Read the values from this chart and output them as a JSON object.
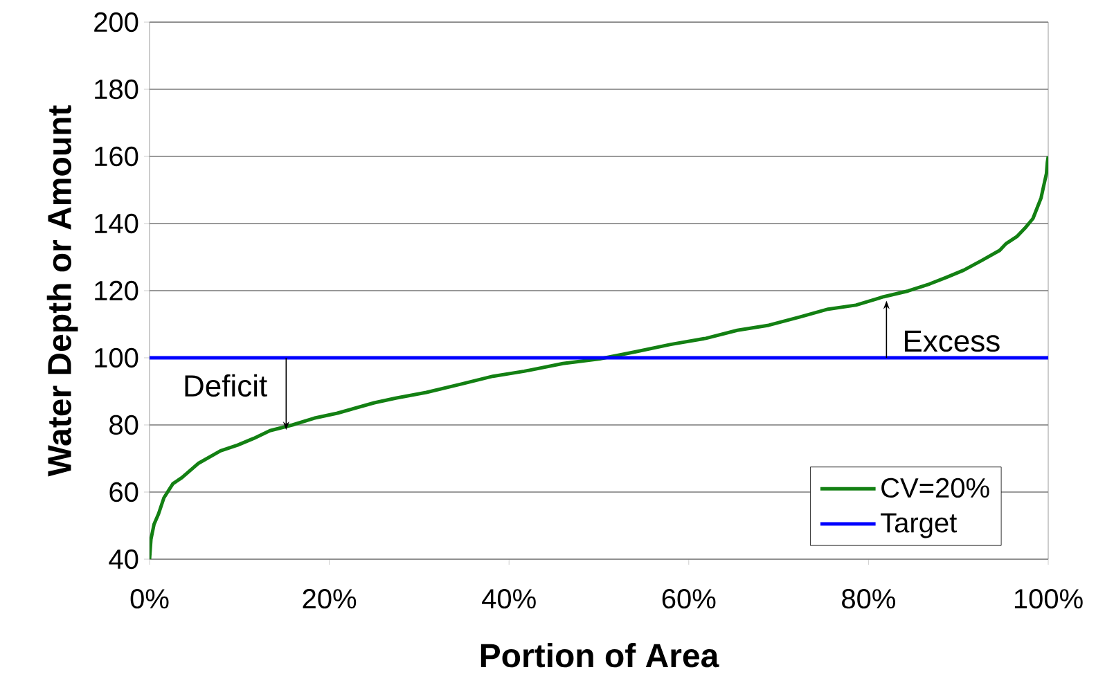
{
  "chart_data": {
    "type": "line",
    "xlabel": "Portion of Area",
    "ylabel": "Water Depth or Amount",
    "xlim": [
      0,
      100
    ],
    "ylim": [
      40,
      200
    ],
    "xticks": [
      {
        "value": 0,
        "label": "0%"
      },
      {
        "value": 20,
        "label": "20%"
      },
      {
        "value": 40,
        "label": "40%"
      },
      {
        "value": 60,
        "label": "60%"
      },
      {
        "value": 80,
        "label": "80%"
      },
      {
        "value": 100,
        "label": "100%"
      }
    ],
    "yticks": [
      40,
      60,
      80,
      100,
      120,
      140,
      160,
      180,
      200
    ],
    "grid": "y",
    "legend": "bottom right",
    "marker": "none",
    "line_style": "solid",
    "series": [
      {
        "name": "CV=20%",
        "color": "#138013",
        "x": [
          0,
          0.16,
          0.5,
          1,
          1.6,
          2.6,
          3.6,
          5.4,
          7.9,
          9.8,
          11.6,
          13.4,
          15.9,
          18.3,
          20.9,
          25,
          27.4,
          30.8,
          34.7,
          38.2,
          41.7,
          46,
          50.1,
          54.1,
          58,
          61.9,
          65.4,
          68.9,
          72.4,
          75.5,
          78.6,
          81.7,
          84.4,
          86.8,
          88.7,
          90.6,
          92.6,
          94.6,
          95.3,
          96.5,
          97.4,
          98.3,
          98.8,
          99.2,
          99.5,
          99.8,
          99.9,
          100
        ],
        "values": [
          40,
          46,
          50.4,
          53.5,
          58.3,
          62.5,
          64.3,
          68.5,
          72.3,
          74,
          76,
          78.3,
          80,
          82,
          83.5,
          86.6,
          88,
          89.7,
          92.2,
          94.5,
          96,
          98.3,
          99.7,
          101.8,
          104,
          105.8,
          108.2,
          109.7,
          112.2,
          114.5,
          115.7,
          118.2,
          119.9,
          122,
          124,
          126.1,
          129,
          132,
          134,
          136.1,
          138.6,
          141.5,
          144.9,
          147.6,
          151.3,
          154.9,
          158.2,
          160
        ]
      },
      {
        "name": "Target",
        "color": "#0000ff",
        "x": [
          0,
          100
        ],
        "values": [
          100,
          100
        ]
      }
    ],
    "annotations": [
      {
        "text": "Deficit",
        "x": 15.2,
        "y": 81
      },
      {
        "text": "Excess",
        "x": 82,
        "y": 117
      }
    ]
  }
}
